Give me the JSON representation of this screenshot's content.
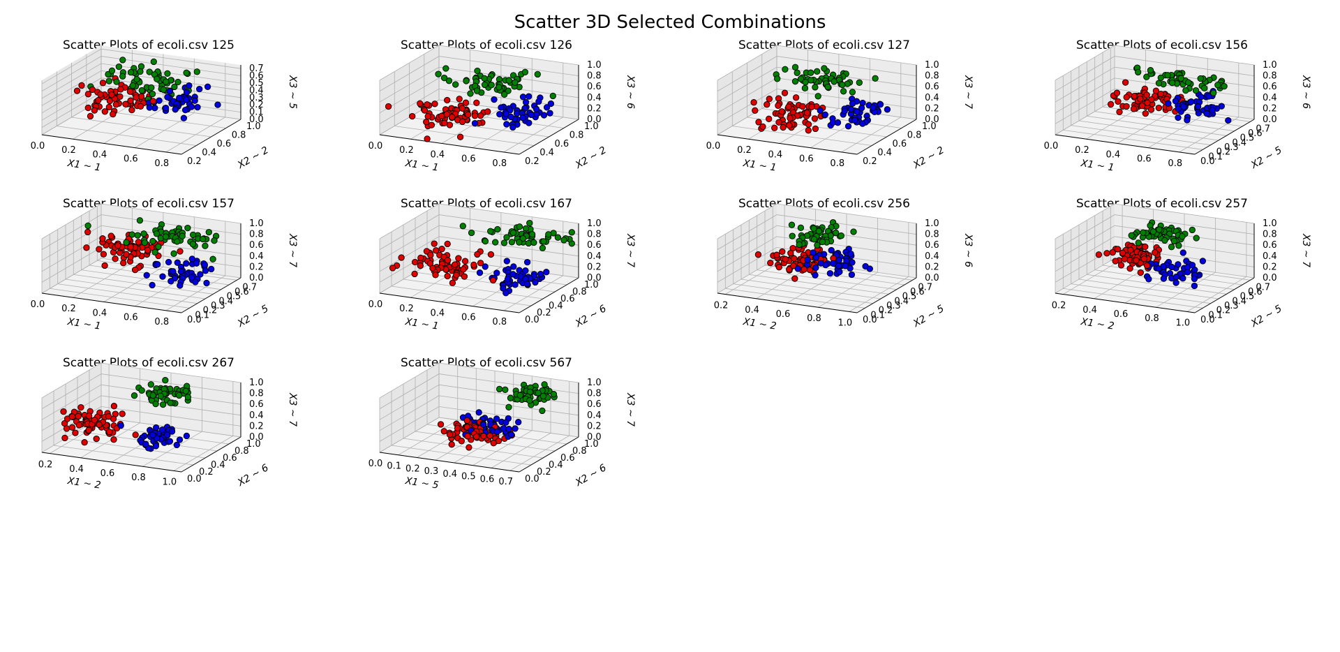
{
  "figure": {
    "title": "Scatter 3D Selected Combinations"
  },
  "colors": {
    "class_a": "#e00000",
    "class_b": "#008000",
    "class_c": "#0000e0",
    "pane": "#f2f2f2"
  },
  "chart_data": [
    {
      "type": "scatter",
      "title": "Scatter Plots of ecoli.csv 125",
      "xlabel": "X1 ~ 1",
      "ylabel": "X2 ~ 2",
      "zlabel": "X3 ~ 5",
      "xticks": [
        "0.0",
        "0.2",
        "0.4",
        "0.6",
        "0.8"
      ],
      "yticks": [
        "0.2",
        "0.4",
        "0.6",
        "0.8",
        "1.0"
      ],
      "zticks": [
        "0.0",
        "0.1",
        "0.2",
        "0.3",
        "0.4",
        "0.5",
        "0.6",
        "0.7"
      ],
      "xlim": [
        0,
        0.9
      ],
      "ylim": [
        0.2,
        1.0
      ],
      "zlim": [
        0,
        0.75
      ],
      "clusters": [
        {
          "color": "class_a",
          "center": [
            0.35,
            0.45,
            0.45
          ],
          "spread": [
            0.12,
            0.1,
            0.08
          ],
          "n": 60
        },
        {
          "color": "class_b",
          "center": [
            0.45,
            0.7,
            0.6
          ],
          "spread": [
            0.15,
            0.12,
            0.08
          ],
          "n": 55
        },
        {
          "color": "class_c",
          "center": [
            0.72,
            0.55,
            0.45
          ],
          "spread": [
            0.08,
            0.1,
            0.07
          ],
          "n": 45
        }
      ]
    },
    {
      "type": "scatter",
      "title": "Scatter Plots of ecoli.csv 126",
      "xlabel": "X1 ~ 1",
      "ylabel": "X2 ~ 2",
      "zlabel": "X3 ~ 6",
      "xticks": [
        "0.0",
        "0.2",
        "0.4",
        "0.6",
        "0.8"
      ],
      "yticks": [
        "0.2",
        "0.4",
        "0.6",
        "0.8",
        "1.0"
      ],
      "zticks": [
        "0.0",
        "0.2",
        "0.4",
        "0.6",
        "0.8",
        "1.0"
      ],
      "xlim": [
        0,
        0.9
      ],
      "ylim": [
        0.2,
        1.0
      ],
      "zlim": [
        0,
        1.0
      ],
      "clusters": [
        {
          "color": "class_a",
          "center": [
            0.35,
            0.45,
            0.3
          ],
          "spread": [
            0.1,
            0.1,
            0.1
          ],
          "n": 65
        },
        {
          "color": "class_b",
          "center": [
            0.45,
            0.7,
            0.75
          ],
          "spread": [
            0.15,
            0.12,
            0.08
          ],
          "n": 50
        },
        {
          "color": "class_c",
          "center": [
            0.75,
            0.55,
            0.45
          ],
          "spread": [
            0.08,
            0.1,
            0.1
          ],
          "n": 45
        }
      ]
    },
    {
      "type": "scatter",
      "title": "Scatter Plots of ecoli.csv 127",
      "xlabel": "X1 ~ 1",
      "ylabel": "X2 ~ 2",
      "zlabel": "X3 ~ 7",
      "xticks": [
        "0.0",
        "0.2",
        "0.4",
        "0.6",
        "0.8"
      ],
      "yticks": [
        "0.2",
        "0.4",
        "0.6",
        "0.8",
        "1.0"
      ],
      "zticks": [
        "0.0",
        "0.2",
        "0.4",
        "0.6",
        "0.8",
        "1.0"
      ],
      "xlim": [
        0,
        0.9
      ],
      "ylim": [
        0.2,
        1.0
      ],
      "zlim": [
        0,
        1.0
      ],
      "clusters": [
        {
          "color": "class_a",
          "center": [
            0.35,
            0.45,
            0.35
          ],
          "spread": [
            0.1,
            0.1,
            0.1
          ],
          "n": 65
        },
        {
          "color": "class_b",
          "center": [
            0.45,
            0.7,
            0.75
          ],
          "spread": [
            0.15,
            0.12,
            0.08
          ],
          "n": 50
        },
        {
          "color": "class_c",
          "center": [
            0.75,
            0.55,
            0.45
          ],
          "spread": [
            0.08,
            0.1,
            0.1
          ],
          "n": 45
        }
      ]
    },
    {
      "type": "scatter",
      "title": "Scatter Plots of ecoli.csv 156",
      "xlabel": "X1 ~ 1",
      "ylabel": "X2 ~ 5",
      "zlabel": "X3 ~ 6",
      "xticks": [
        "0.0",
        "0.2",
        "0.4",
        "0.6",
        "0.8"
      ],
      "yticks": [
        "0.0",
        "0.1",
        "0.2",
        "0.3",
        "0.4",
        "0.5",
        "0.6",
        "0.7"
      ],
      "zticks": [
        "0.0",
        "0.2",
        "0.4",
        "0.6",
        "0.8",
        "1.0"
      ],
      "xlim": [
        0,
        0.9
      ],
      "ylim": [
        0,
        0.75
      ],
      "zlim": [
        0,
        1.0
      ],
      "clusters": [
        {
          "color": "class_a",
          "center": [
            0.35,
            0.45,
            0.35
          ],
          "spread": [
            0.1,
            0.08,
            0.1
          ],
          "n": 65
        },
        {
          "color": "class_b",
          "center": [
            0.55,
            0.5,
            0.8
          ],
          "spread": [
            0.15,
            0.08,
            0.07
          ],
          "n": 50
        },
        {
          "color": "class_c",
          "center": [
            0.7,
            0.45,
            0.45
          ],
          "spread": [
            0.08,
            0.08,
            0.1
          ],
          "n": 45
        }
      ]
    },
    {
      "type": "scatter",
      "title": "Scatter Plots of ecoli.csv 157",
      "xlabel": "X1 ~ 1",
      "ylabel": "X2 ~ 5",
      "zlabel": "X3 ~ 7",
      "xticks": [
        "0.0",
        "0.2",
        "0.4",
        "0.6",
        "0.8"
      ],
      "yticks": [
        "0.0",
        "0.1",
        "0.2",
        "0.3",
        "0.4",
        "0.5",
        "0.6",
        "0.7"
      ],
      "zticks": [
        "0.0",
        "0.2",
        "0.4",
        "0.6",
        "0.8",
        "1.0"
      ],
      "xlim": [
        0,
        0.9
      ],
      "ylim": [
        0,
        0.75
      ],
      "zlim": [
        0,
        1.0
      ],
      "clusters": [
        {
          "color": "class_a",
          "center": [
            0.35,
            0.45,
            0.55
          ],
          "spread": [
            0.1,
            0.08,
            0.12
          ],
          "n": 65
        },
        {
          "color": "class_b",
          "center": [
            0.6,
            0.5,
            0.85
          ],
          "spread": [
            0.15,
            0.08,
            0.07
          ],
          "n": 50
        },
        {
          "color": "class_c",
          "center": [
            0.7,
            0.4,
            0.3
          ],
          "spread": [
            0.08,
            0.08,
            0.1
          ],
          "n": 45
        }
      ]
    },
    {
      "type": "scatter",
      "title": "Scatter Plots of ecoli.csv 167",
      "xlabel": "X1 ~ 1",
      "ylabel": "X2 ~ 6",
      "zlabel": "X3 ~ 7",
      "xticks": [
        "0.0",
        "0.2",
        "0.4",
        "0.6",
        "0.8"
      ],
      "yticks": [
        "0.0",
        "0.2",
        "0.4",
        "0.6",
        "0.8",
        "1.0"
      ],
      "zticks": [
        "0.0",
        "0.2",
        "0.4",
        "0.6",
        "0.8",
        "1.0"
      ],
      "xlim": [
        0,
        0.9
      ],
      "ylim": [
        0,
        1.0
      ],
      "zlim": [
        0,
        1.0
      ],
      "clusters": [
        {
          "color": "class_a",
          "center": [
            0.3,
            0.35,
            0.4
          ],
          "spread": [
            0.12,
            0.1,
            0.12
          ],
          "n": 65
        },
        {
          "color": "class_b",
          "center": [
            0.65,
            0.75,
            0.8
          ],
          "spread": [
            0.15,
            0.1,
            0.08
          ],
          "n": 50
        },
        {
          "color": "class_c",
          "center": [
            0.7,
            0.45,
            0.3
          ],
          "spread": [
            0.08,
            0.1,
            0.1
          ],
          "n": 45
        }
      ]
    },
    {
      "type": "scatter",
      "title": "Scatter Plots of ecoli.csv 256",
      "xlabel": "X1 ~ 2",
      "ylabel": "X2 ~ 5",
      "zlabel": "X3 ~ 6",
      "xticks": [
        "0.2",
        "0.4",
        "0.6",
        "0.8",
        "1.0"
      ],
      "yticks": [
        "0.0",
        "0.1",
        "0.2",
        "0.3",
        "0.4",
        "0.5",
        "0.6",
        "0.7"
      ],
      "zticks": [
        "0.0",
        "0.2",
        "0.4",
        "0.6",
        "0.8",
        "1.0"
      ],
      "xlim": [
        0.15,
        1.05
      ],
      "ylim": [
        0,
        0.75
      ],
      "zlim": [
        0,
        1.0
      ],
      "clusters": [
        {
          "color": "class_a",
          "center": [
            0.45,
            0.45,
            0.3
          ],
          "spread": [
            0.08,
            0.08,
            0.1
          ],
          "n": 65
        },
        {
          "color": "class_b",
          "center": [
            0.55,
            0.5,
            0.8
          ],
          "spread": [
            0.07,
            0.08,
            0.08
          ],
          "n": 50
        },
        {
          "color": "class_c",
          "center": [
            0.7,
            0.45,
            0.4
          ],
          "spread": [
            0.1,
            0.08,
            0.08
          ],
          "n": 45
        }
      ]
    },
    {
      "type": "scatter",
      "title": "Scatter Plots of ecoli.csv 257",
      "xlabel": "X1 ~ 2",
      "ylabel": "X2 ~ 5",
      "zlabel": "X3 ~ 7",
      "xticks": [
        "0.2",
        "0.4",
        "0.6",
        "0.8",
        "1.0"
      ],
      "yticks": [
        "0.0",
        "0.1",
        "0.2",
        "0.3",
        "0.4",
        "0.5",
        "0.6",
        "0.7"
      ],
      "zticks": [
        "0.0",
        "0.2",
        "0.4",
        "0.6",
        "0.8",
        "1.0"
      ],
      "xlim": [
        0.15,
        1.05
      ],
      "ylim": [
        0,
        0.75
      ],
      "zlim": [
        0,
        1.0
      ],
      "clusters": [
        {
          "color": "class_a",
          "center": [
            0.45,
            0.45,
            0.45
          ],
          "spread": [
            0.08,
            0.08,
            0.12
          ],
          "n": 65
        },
        {
          "color": "class_b",
          "center": [
            0.6,
            0.5,
            0.85
          ],
          "spread": [
            0.08,
            0.08,
            0.07
          ],
          "n": 50
        },
        {
          "color": "class_c",
          "center": [
            0.72,
            0.4,
            0.3
          ],
          "spread": [
            0.1,
            0.08,
            0.08
          ],
          "n": 45
        }
      ]
    },
    {
      "type": "scatter",
      "title": "Scatter Plots of ecoli.csv 267",
      "xlabel": "X1 ~ 2",
      "ylabel": "X2 ~ 6",
      "zlabel": "X3 ~ 7",
      "xticks": [
        "0.2",
        "0.4",
        "0.6",
        "0.8",
        "1.0"
      ],
      "yticks": [
        "0.0",
        "0.2",
        "0.4",
        "0.6",
        "0.8",
        "1.0"
      ],
      "zticks": [
        "0.0",
        "0.2",
        "0.4",
        "0.6",
        "0.8",
        "1.0"
      ],
      "xlim": [
        0.15,
        1.05
      ],
      "ylim": [
        0,
        1.0
      ],
      "zlim": [
        0,
        1.0
      ],
      "clusters": [
        {
          "color": "class_a",
          "center": [
            0.35,
            0.35,
            0.4
          ],
          "spread": [
            0.1,
            0.1,
            0.1
          ],
          "n": 65
        },
        {
          "color": "class_b",
          "center": [
            0.65,
            0.75,
            0.8
          ],
          "spread": [
            0.07,
            0.08,
            0.08
          ],
          "n": 50
        },
        {
          "color": "class_c",
          "center": [
            0.75,
            0.4,
            0.25
          ],
          "spread": [
            0.08,
            0.1,
            0.08
          ],
          "n": 45
        }
      ]
    },
    {
      "type": "scatter",
      "title": "Scatter Plots of ecoli.csv 567",
      "xlabel": "X1 ~ 5",
      "ylabel": "X2 ~ 6",
      "zlabel": "X3 ~ 7",
      "xticks": [
        "0.0",
        "0.1",
        "0.2",
        "0.3",
        "0.4",
        "0.5",
        "0.6",
        "0.7"
      ],
      "yticks": [
        "0.0",
        "0.2",
        "0.4",
        "0.6",
        "0.8",
        "1.0"
      ],
      "zticks": [
        "0.0",
        "0.2",
        "0.4",
        "0.6",
        "0.8",
        "1.0"
      ],
      "xlim": [
        0,
        0.75
      ],
      "ylim": [
        0,
        1.0
      ],
      "zlim": [
        0,
        1.0
      ],
      "clusters": [
        {
          "color": "class_a",
          "center": [
            0.4,
            0.35,
            0.3
          ],
          "spread": [
            0.07,
            0.1,
            0.1
          ],
          "n": 60
        },
        {
          "color": "class_b",
          "center": [
            0.55,
            0.8,
            0.8
          ],
          "spread": [
            0.07,
            0.08,
            0.08
          ],
          "n": 50
        },
        {
          "color": "class_c",
          "center": [
            0.45,
            0.45,
            0.4
          ],
          "spread": [
            0.07,
            0.1,
            0.08
          ],
          "n": 50
        }
      ]
    }
  ]
}
